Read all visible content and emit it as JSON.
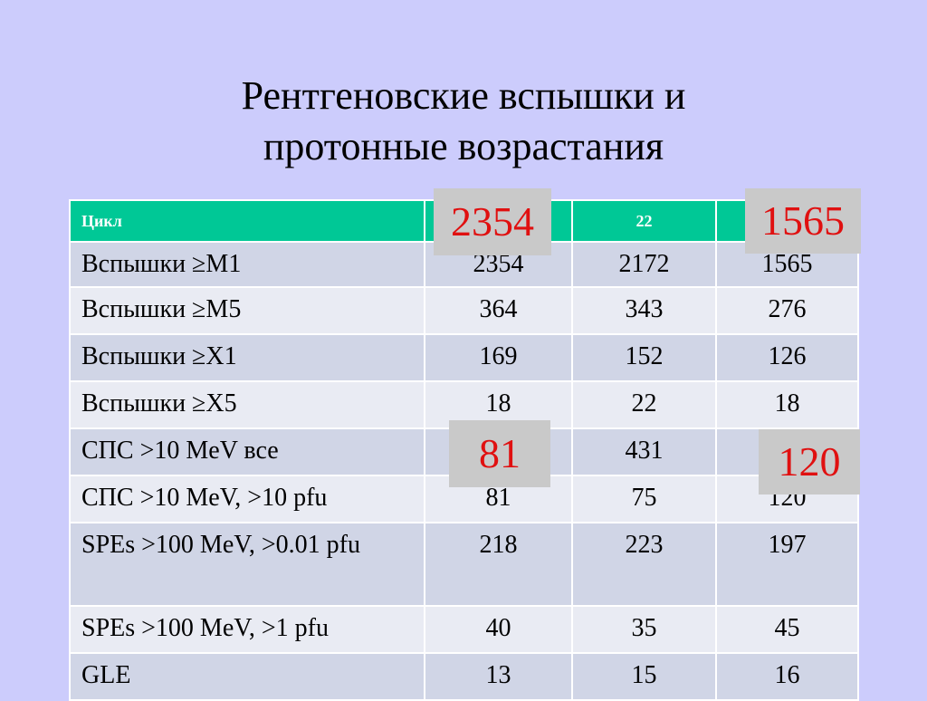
{
  "title": {
    "line1": "Рентгеновские вспышки и",
    "line2": "протонные возрастания"
  },
  "table": {
    "header": [
      "Цикл",
      "",
      "22",
      ""
    ],
    "rows": [
      {
        "label": "Вспышки ≥M1",
        "values": [
          "2354",
          "2172",
          "1565"
        ]
      },
      {
        "label": "Вспышки ≥M5",
        "values": [
          "364",
          "343",
          "276"
        ]
      },
      {
        "label": "Вспышки ≥X1",
        "values": [
          "169",
          "152",
          "126"
        ]
      },
      {
        "label": "Вспышки ≥X5",
        "values": [
          "18",
          "22",
          "18"
        ]
      },
      {
        "label": "СПС  >10 MeV  все",
        "values": [
          "",
          "431",
          ""
        ]
      },
      {
        "label": "СПС  >10 MeV, >10 pfu",
        "values": [
          "81",
          "75",
          "120"
        ]
      },
      {
        "label": "SPEs >100 MeV, >0.01 pfu",
        "values": [
          "218",
          "223",
          "197"
        ]
      },
      {
        "label": "SPEs >100 MeV, >1 pfu",
        "values": [
          "40",
          "35",
          "45"
        ]
      },
      {
        "label": "GLE",
        "values": [
          "13",
          "15",
          "16"
        ]
      }
    ]
  },
  "callouts": [
    "2354",
    "1565",
    "81",
    "120"
  ],
  "colors": {
    "background": "#ccccfc",
    "header": "#00c896",
    "row_odd": "#d0d5e6",
    "row_even": "#e9ebf3",
    "callout_bg": "#c9c9c9",
    "callout_text": "#e01010"
  }
}
